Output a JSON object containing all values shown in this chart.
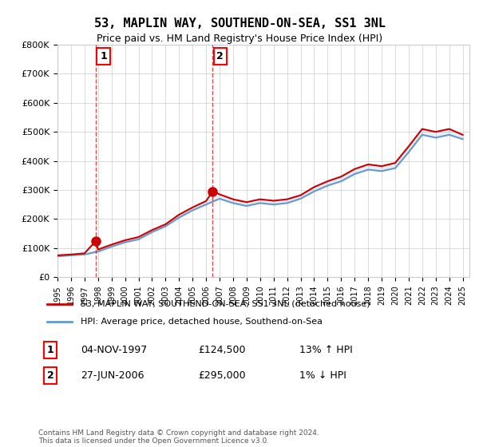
{
  "title": "53, MAPLIN WAY, SOUTHEND-ON-SEA, SS1 3NL",
  "subtitle": "Price paid vs. HM Land Registry's House Price Index (HPI)",
  "ylabel_ticks": [
    "£0",
    "£100K",
    "£200K",
    "£300K",
    "£400K",
    "£500K",
    "£600K",
    "£700K",
    "£800K"
  ],
  "ylim": [
    0,
    800000
  ],
  "xlim_start": 1995.0,
  "xlim_end": 2025.5,
  "sale1_date": 1997.84,
  "sale1_price": 124500,
  "sale1_label": "1",
  "sale1_info": "04-NOV-1997",
  "sale1_price_str": "£124,500",
  "sale1_hpi": "13% ↑ HPI",
  "sale2_date": 2006.49,
  "sale2_price": 295000,
  "sale2_label": "2",
  "sale2_info": "27-JUN-2006",
  "sale2_price_str": "£295,000",
  "sale2_hpi": "1% ↓ HPI",
  "legend_line1": "53, MAPLIN WAY, SOUTHEND-ON-SEA, SS1 3NL (detached house)",
  "legend_line2": "HPI: Average price, detached house, Southend-on-Sea",
  "footer": "Contains HM Land Registry data © Crown copyright and database right 2024.\nThis data is licensed under the Open Government Licence v3.0.",
  "red_color": "#cc0000",
  "blue_color": "#6699cc",
  "background_color": "#f0f0f0",
  "hpi_years": [
    1995,
    1996,
    1997,
    1998,
    1999,
    2000,
    2001,
    2002,
    2003,
    2004,
    2005,
    2006,
    2007,
    2008,
    2009,
    2010,
    2011,
    2012,
    2013,
    2014,
    2015,
    2016,
    2017,
    2018,
    2019,
    2020,
    2021,
    2022,
    2023,
    2024,
    2025
  ],
  "hpi_values": [
    72000,
    75000,
    78000,
    88000,
    105000,
    120000,
    130000,
    155000,
    175000,
    205000,
    230000,
    250000,
    270000,
    255000,
    245000,
    255000,
    250000,
    255000,
    270000,
    295000,
    315000,
    330000,
    355000,
    370000,
    365000,
    375000,
    430000,
    490000,
    480000,
    490000,
    475000
  ],
  "red_years": [
    1995,
    1996,
    1997,
    1997.84,
    1998,
    1999,
    2000,
    2001,
    2002,
    2003,
    2004,
    2005,
    2006,
    2006.49,
    2007,
    2008,
    2009,
    2010,
    2011,
    2012,
    2013,
    2014,
    2015,
    2016,
    2017,
    2018,
    2019,
    2020,
    2021,
    2022,
    2023,
    2024,
    2025
  ],
  "red_values": [
    75000,
    78000,
    82000,
    124500,
    95000,
    112000,
    127000,
    138000,
    162000,
    182000,
    215000,
    240000,
    262000,
    295000,
    285000,
    268000,
    258000,
    268000,
    263000,
    268000,
    282000,
    310000,
    330000,
    346000,
    372000,
    388000,
    382000,
    393000,
    450000,
    510000,
    500000,
    510000,
    490000
  ]
}
